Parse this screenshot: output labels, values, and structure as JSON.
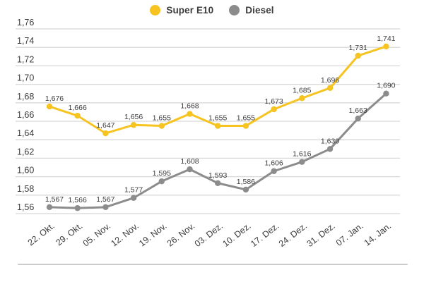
{
  "legend": [
    {
      "label": "Super E10",
      "color": "#f6c320"
    },
    {
      "label": "Diesel",
      "color": "#8c8c8c"
    }
  ],
  "chart_data": {
    "type": "line",
    "title": "",
    "xlabel": "",
    "ylabel": "",
    "categories": [
      "22. Okt.",
      "29. Okt.",
      "05. Nov.",
      "12. Nov.",
      "19. Nov.",
      "26. Nov.",
      "03. Dez.",
      "10. Dez.",
      "17. Dez.",
      "24. Dez.",
      "31. Dez.",
      "07. Jan.",
      "14. Jan."
    ],
    "series": [
      {
        "name": "Super E10",
        "color": "#f6c320",
        "values": [
          1.676,
          1.666,
          1.647,
          1.656,
          1.655,
          1.668,
          1.655,
          1.655,
          1.673,
          1.685,
          1.696,
          1.731,
          1.741
        ],
        "point_labels": [
          "1,676",
          "1,666",
          "1,647",
          "1,656",
          "1,655",
          "1,668",
          "1,655",
          "1,655",
          "1,673",
          "1,685",
          "1,696",
          "1,731",
          "1,741"
        ]
      },
      {
        "name": "Diesel",
        "color": "#8c8c8c",
        "values": [
          1.567,
          1.566,
          1.567,
          1.577,
          1.595,
          1.608,
          1.593,
          1.586,
          1.606,
          1.616,
          1.63,
          1.663,
          1.69
        ],
        "point_labels": [
          "1,567",
          "1,566",
          "1,567",
          "1,577",
          "1,595",
          "1,608",
          "1,593",
          "1,586",
          "1,606",
          "1,616",
          "1,630",
          "1,663",
          "1,690"
        ]
      }
    ],
    "ylim": [
      1.56,
      1.76
    ],
    "ytick_step": 0.02,
    "ytick_labels": [
      "1,76",
      "1,74",
      "1,72",
      "1,70",
      "1,68",
      "1,66",
      "1,64",
      "1,62",
      "1,60",
      "1,58",
      "1,56"
    ],
    "grid": true,
    "legend_position": "top-center",
    "value_labels": true,
    "decimal_separator": ","
  },
  "colors": {
    "background": "#ffffff",
    "gridline": "#d8d8d8",
    "text": "#3c3c3c",
    "divider": "#cccccc"
  }
}
